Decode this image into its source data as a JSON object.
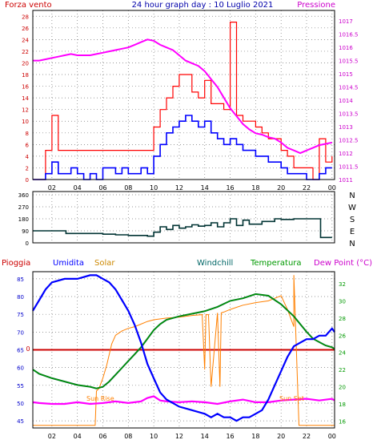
{
  "title": "24 hour graph day : 10 Luglio 2021",
  "panel_wind": {
    "left_label": "Forza vento",
    "right_label": "Pressione",
    "left_ticks": [
      0,
      2,
      4,
      6,
      8,
      10,
      12,
      14,
      16,
      18,
      20,
      22,
      24,
      26,
      28
    ],
    "right_ticks": [
      "1011",
      "1011.5",
      "1012",
      "1012.5",
      "1013",
      "1013.5",
      "1014",
      "1014.5",
      "1015",
      "1015.5",
      "1016",
      "1016.5",
      "1017"
    ],
    "y_range": [
      0,
      29
    ],
    "pressure_range": [
      1011,
      1017.4
    ],
    "colors": {
      "gust": "#ff0000",
      "wind": "#0000ff",
      "pressure": "#ff00ff",
      "left_axis": "#cc0000",
      "right_axis": "#cc00cc"
    }
  },
  "panel_dir": {
    "ticks": [
      0,
      90,
      180,
      270,
      360
    ],
    "compass": [
      "N",
      "W",
      "S",
      "E",
      "N"
    ],
    "y_range": [
      0,
      360
    ],
    "color": "#003333"
  },
  "panel_temp": {
    "labels": {
      "rain": "Pioggia",
      "humidity": "Umidita",
      "solar": "Solar",
      "windchill": "Windchill",
      "temp": "Temperatura",
      "dew": "Dew Point (°C)"
    },
    "left_ticks": [
      45,
      50,
      55,
      60,
      65,
      70,
      75,
      80,
      85
    ],
    "right_ticks": [
      16,
      18,
      20,
      22,
      24,
      26,
      28,
      30,
      32
    ],
    "rain_tick": "0",
    "sun_rise": "Sun Rise",
    "sun_set": "Sun Set",
    "humidity_range": [
      43,
      87
    ],
    "temp_range": [
      15.2,
      33.4
    ],
    "colors": {
      "rain": "#cc0000",
      "humidity": "#0000ff",
      "solar": "#ff8000",
      "windchill": "#006633",
      "temp": "#009900",
      "dew": "#ff00ff",
      "right_axis": "#009900"
    }
  },
  "x_ticks": [
    "02",
    "04",
    "06",
    "08",
    "10",
    "12",
    "14",
    "16",
    "18",
    "20",
    "22",
    "00"
  ],
  "x_range_hours": [
    0.5,
    24.2
  ],
  "chart_data": [
    {
      "type": "line",
      "title": "24 hour graph day : 10 Luglio 2021",
      "x_unit": "hour",
      "ylabel": "Forza vento",
      "y2label": "Pressione",
      "series": [
        {
          "name": "Forza vento",
          "x": [
            0.5,
            1,
            1.5,
            2,
            2.5,
            3,
            3.5,
            4,
            4.5,
            5,
            5.5,
            6,
            6.5,
            7,
            7.5,
            8,
            8.5,
            9,
            9.5,
            10,
            10.5,
            11,
            11.5,
            12,
            12.5,
            13,
            13.5,
            14,
            14.5,
            15,
            15.5,
            16,
            16.5,
            17,
            17.5,
            18,
            18.5,
            19,
            19.5,
            20,
            20.5,
            21,
            21.5,
            22,
            22.5,
            23,
            23.5,
            24
          ],
          "values": [
            0,
            0,
            1,
            3,
            1,
            1,
            2,
            1,
            0,
            1,
            0,
            2,
            2,
            1,
            2,
            1,
            1,
            2,
            1,
            4,
            6,
            8,
            9,
            10,
            11,
            10,
            9,
            10,
            8,
            7,
            6,
            7,
            6,
            5,
            5,
            4,
            4,
            3,
            3,
            2,
            1,
            1,
            1,
            0,
            0,
            1,
            2,
            2
          ]
        },
        {
          "name": "gust",
          "x": [
            0.5,
            1,
            1.5,
            2,
            2.5,
            3,
            3.5,
            4,
            4.5,
            5,
            5.5,
            6,
            6.5,
            7,
            7.5,
            8,
            8.5,
            9,
            9.5,
            10,
            10.5,
            11,
            11.5,
            12,
            12.5,
            13,
            13.5,
            14,
            14.5,
            15,
            15.5,
            16,
            16.5,
            17,
            17.5,
            18,
            18.5,
            19,
            19.5,
            20,
            20.5,
            21,
            21.5,
            22,
            22.5,
            23,
            23.5,
            24
          ],
          "values": [
            0,
            0,
            5,
            11,
            5,
            5,
            5,
            5,
            5,
            5,
            5,
            5,
            5,
            5,
            5,
            5,
            5,
            5,
            5,
            9,
            12,
            14,
            16,
            18,
            18,
            15,
            14,
            17,
            13,
            13,
            12,
            27,
            11,
            10,
            10,
            9,
            8,
            7,
            7,
            5,
            4,
            2,
            2,
            2,
            0,
            7,
            3,
            4
          ]
        },
        {
          "name": "Pressione",
          "axis": "right",
          "x": [
            0.5,
            1,
            1.5,
            2,
            2.5,
            3,
            3.5,
            4,
            4.5,
            5,
            5.5,
            6,
            6.5,
            7,
            7.5,
            8,
            8.5,
            9,
            9.5,
            10,
            10.5,
            11,
            11.5,
            12,
            12.5,
            13,
            13.5,
            14,
            14.5,
            15,
            15.5,
            16,
            16.5,
            17,
            17.5,
            18,
            18.5,
            19,
            19.5,
            20,
            20.5,
            21,
            21.5,
            22,
            22.5,
            23,
            23.5,
            24
          ],
          "values": [
            1015.5,
            1015.5,
            1015.55,
            1015.6,
            1015.65,
            1015.7,
            1015.75,
            1015.7,
            1015.7,
            1015.7,
            1015.75,
            1015.8,
            1015.85,
            1015.9,
            1015.95,
            1016.0,
            1016.1,
            1016.2,
            1016.3,
            1016.25,
            1016.1,
            1016.0,
            1015.9,
            1015.7,
            1015.5,
            1015.4,
            1015.3,
            1015.1,
            1014.8,
            1014.5,
            1014.1,
            1013.7,
            1013.4,
            1013.1,
            1012.9,
            1012.75,
            1012.7,
            1012.6,
            1012.55,
            1012.4,
            1012.2,
            1012.1,
            1012.0,
            1012.1,
            1012.2,
            1012.3,
            1012.35,
            1012.4
          ]
        }
      ],
      "y_ticks": [
        0,
        2,
        4,
        6,
        8,
        10,
        12,
        14,
        16,
        18,
        20,
        22,
        24,
        26,
        28
      ],
      "y2_range": [
        1011,
        1017
      ],
      "x_ticks": [
        "02",
        "04",
        "06",
        "08",
        "10",
        "12",
        "14",
        "16",
        "18",
        "20",
        "22",
        "00"
      ]
    },
    {
      "type": "line",
      "x_unit": "hour",
      "ylabel": "",
      "series": [
        {
          "name": "direction",
          "x": [
            0.5,
            1,
            2,
            3,
            3.1,
            4,
            5,
            6,
            7,
            8,
            9,
            9.5,
            10,
            10.5,
            11,
            11.5,
            12,
            12.5,
            13,
            13.5,
            14,
            14.5,
            15,
            15.5,
            16,
            16.5,
            17,
            17.5,
            18,
            18.5,
            19,
            19.5,
            20,
            21,
            22,
            23,
            23.1,
            24
          ],
          "values": [
            90,
            90,
            90,
            90,
            70,
            70,
            70,
            65,
            60,
            55,
            55,
            50,
            80,
            120,
            100,
            130,
            110,
            120,
            135,
            125,
            130,
            150,
            120,
            150,
            180,
            130,
            170,
            140,
            140,
            160,
            160,
            180,
            175,
            180,
            180,
            180,
            40,
            40
          ]
        }
      ],
      "y_ticks": [
        0,
        90,
        180,
        270,
        360
      ],
      "compass_labels": [
        "N",
        "W",
        "S",
        "E",
        "N"
      ],
      "x_ticks": [
        "02",
        "04",
        "06",
        "08",
        "10",
        "12",
        "14",
        "16",
        "18",
        "20",
        "22",
        "00"
      ]
    },
    {
      "type": "line",
      "x_unit": "hour",
      "ylabel": "Umidita",
      "y2label": "Dew Point (°C)",
      "series": [
        {
          "name": "Umidita",
          "x": [
            0.5,
            1,
            1.5,
            2,
            3,
            4,
            5,
            5.5,
            6,
            6.5,
            7,
            7.5,
            8,
            8.5,
            9,
            9.5,
            10,
            10.5,
            11,
            12,
            13,
            14,
            14.5,
            15,
            15.5,
            16,
            16.5,
            17,
            17.5,
            18,
            18.5,
            19,
            19.5,
            20,
            20.5,
            21,
            21.5,
            22,
            22.5,
            23,
            23.5,
            24,
            24.2
          ],
          "values": [
            76,
            79,
            82,
            84,
            85,
            85,
            86,
            86,
            85,
            84,
            82,
            79,
            76,
            72,
            67,
            61,
            57,
            53,
            51,
            49,
            48,
            47,
            46,
            47,
            46,
            46,
            45,
            46,
            46,
            47,
            48,
            51,
            55,
            59,
            63,
            66,
            67,
            68,
            68,
            69,
            69,
            71,
            70
          ]
        },
        {
          "name": "Temperatura",
          "axis": "right",
          "x": [
            0.5,
            1,
            2,
            3,
            4,
            5,
            5.5,
            6,
            6.5,
            7,
            7.5,
            8,
            8.5,
            9,
            9.5,
            10,
            10.5,
            11,
            12,
            13,
            14,
            15,
            16,
            17,
            18,
            19,
            20,
            21,
            22,
            22.5,
            23,
            23.5,
            24,
            24.2
          ],
          "values": [
            22,
            21.5,
            21,
            20.6,
            20.2,
            20,
            19.8,
            20,
            20.6,
            21.4,
            22.2,
            23,
            23.8,
            24.6,
            25.6,
            26.6,
            27.3,
            27.8,
            28.2,
            28.5,
            28.8,
            29.3,
            30,
            30.3,
            30.8,
            30.6,
            29.6,
            28.2,
            26.4,
            25.6,
            25.2,
            24.8,
            24.6,
            24.4
          ]
        },
        {
          "name": "Windchill",
          "axis": "right",
          "x": [
            0.5,
            1,
            2,
            3,
            4,
            5,
            5.5,
            6,
            6.5,
            7,
            7.5,
            8,
            8.5,
            9,
            9.5,
            10,
            10.5,
            11,
            12,
            13,
            14,
            15,
            16,
            17,
            18,
            19,
            20,
            21,
            22,
            22.5,
            23,
            23.5,
            24,
            24.2
          ],
          "values": [
            22,
            21.5,
            21,
            20.6,
            20.2,
            20,
            19.8,
            20,
            20.6,
            21.4,
            22.2,
            23,
            23.8,
            24.6,
            25.6,
            26.6,
            27.3,
            27.8,
            28.2,
            28.5,
            28.8,
            29.3,
            30,
            30.3,
            30.8,
            30.6,
            29.6,
            28.2,
            26.4,
            25.6,
            25.2,
            24.8,
            24.6,
            24.4
          ]
        },
        {
          "name": "Dew Point (°C)",
          "axis": "right",
          "x": [
            0.5,
            1,
            2,
            3,
            4,
            5,
            6,
            7,
            8,
            9,
            9.5,
            10,
            10.5,
            11,
            12,
            13,
            14,
            15,
            16,
            17,
            18,
            19,
            20,
            21,
            22,
            23,
            24,
            24.2
          ],
          "values": [
            18.2,
            18.1,
            18,
            18,
            18.2,
            18,
            18.1,
            18.3,
            18.1,
            18.3,
            18.7,
            18.9,
            18.4,
            18.3,
            18.2,
            18.3,
            18.2,
            18,
            18.3,
            18.5,
            18.2,
            18.2,
            18.4,
            18.5,
            18.6,
            18.4,
            18.6,
            18.4
          ]
        },
        {
          "name": "Solar",
          "axis": "right",
          "x": [
            0.5,
            5.4,
            5.5,
            5.7,
            6,
            6.3,
            6.7,
            7,
            7.5,
            8,
            8.5,
            9,
            9.5,
            10,
            11,
            12,
            13,
            13.8,
            14,
            14.1,
            14.3,
            14.5,
            15,
            15.2,
            15.3,
            15.5,
            16,
            17,
            18,
            19,
            19.5,
            20,
            20.5,
            21,
            21,
            21.4,
            21.5,
            22,
            23,
            24,
            24.2
          ],
          "values": [
            15.5,
            15.5,
            19.5,
            19.8,
            21,
            22.5,
            25,
            26,
            26.5,
            26.8,
            27,
            27.3,
            27.6,
            27.8,
            28,
            28.1,
            28.3,
            28.4,
            22,
            28.4,
            28.4,
            20,
            28.6,
            20,
            28.6,
            28.7,
            29,
            29.5,
            29.8,
            30,
            30.3,
            30.6,
            29,
            27,
            33,
            15.5,
            15.5,
            15.5,
            15.5,
            15.5,
            15.5
          ]
        }
      ],
      "rain": [
        {
          "name": "Pioggia",
          "value": 0
        }
      ],
      "annotations": [
        "Sun Rise",
        "Sun Set"
      ],
      "y_ticks": [
        45,
        50,
        55,
        60,
        65,
        70,
        75,
        80,
        85
      ],
      "y2_ticks": [
        16,
        18,
        20,
        22,
        24,
        26,
        28,
        30,
        32
      ],
      "x_ticks": [
        "02",
        "04",
        "06",
        "08",
        "10",
        "12",
        "14",
        "16",
        "18",
        "20",
        "22",
        "00"
      ]
    }
  ]
}
